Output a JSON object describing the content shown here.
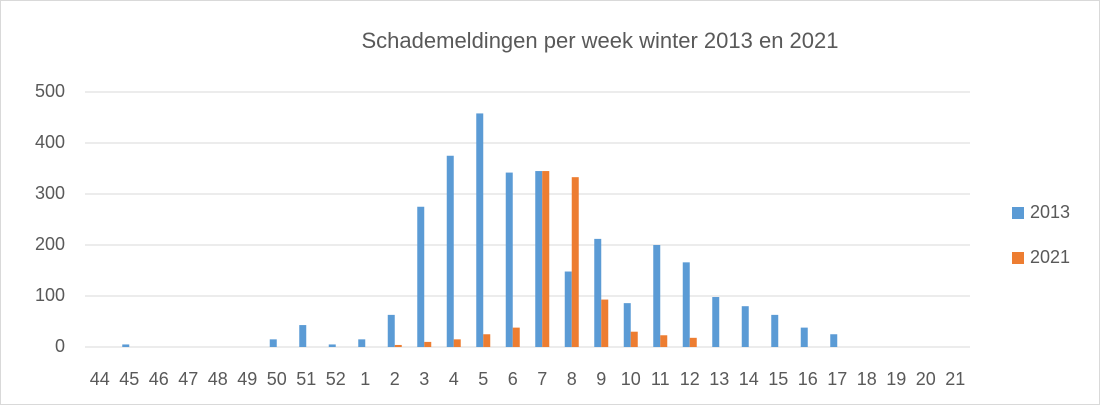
{
  "chart_data": {
    "type": "bar",
    "title": "Schademeldingen  per week winter 2013 en 2021",
    "categories": [
      "44",
      "45",
      "46",
      "47",
      "48",
      "49",
      "50",
      "51",
      "52",
      "1",
      "2",
      "3",
      "4",
      "5",
      "6",
      "7",
      "8",
      "9",
      "10",
      "11",
      "12",
      "13",
      "14",
      "15",
      "16",
      "17",
      "18",
      "19",
      "20",
      "21"
    ],
    "series": [
      {
        "name": "2013",
        "color": "#5b9bd5",
        "values": [
          0,
          5,
          0,
          0,
          0,
          0,
          15,
          43,
          5,
          15,
          63,
          275,
          375,
          458,
          342,
          345,
          148,
          212,
          86,
          200,
          166,
          98,
          80,
          63,
          38,
          25,
          0,
          0,
          0,
          0
        ]
      },
      {
        "name": "2021",
        "color": "#ed7d31",
        "values": [
          0,
          0,
          0,
          0,
          0,
          0,
          0,
          0,
          0,
          0,
          4,
          10,
          15,
          25,
          38,
          345,
          333,
          93,
          30,
          23,
          18,
          0,
          0,
          0,
          0,
          0,
          0,
          0,
          0,
          0
        ]
      }
    ],
    "ylim": [
      0,
      500
    ],
    "yticks": [
      0,
      100,
      200,
      300,
      400,
      500
    ],
    "grid": true,
    "legend": "right"
  }
}
